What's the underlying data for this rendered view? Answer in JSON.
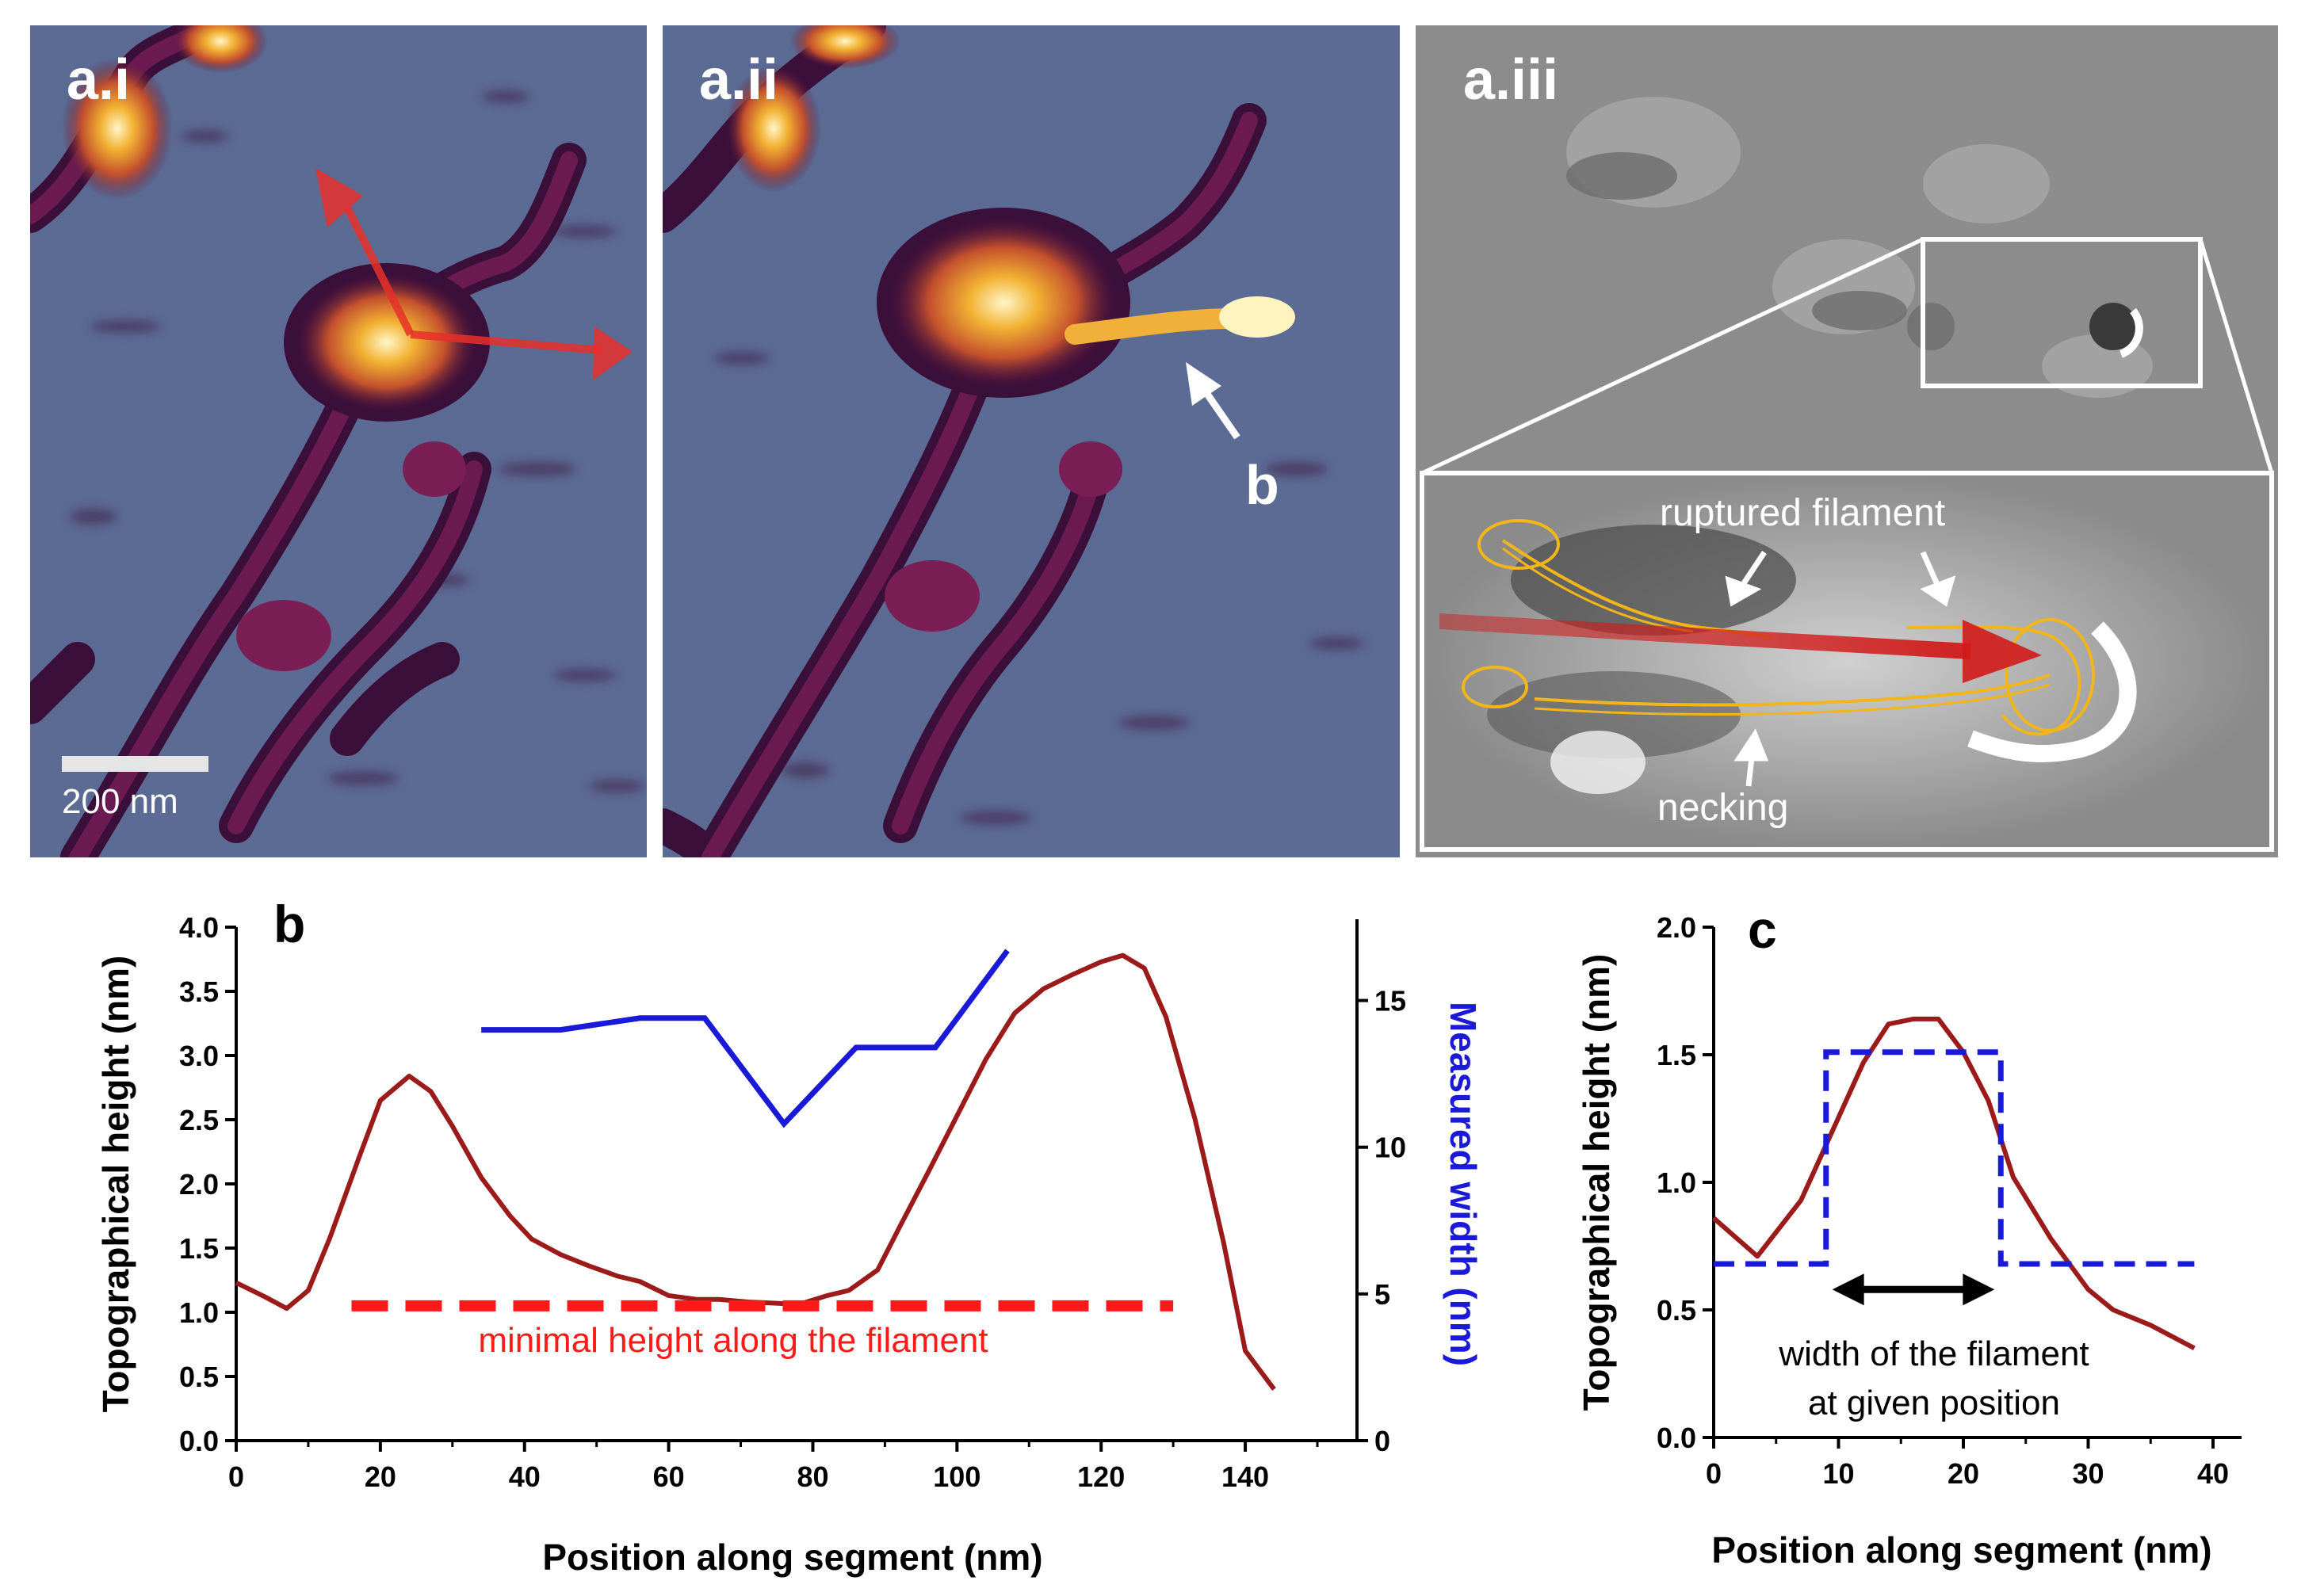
{
  "panels": {
    "ai": {
      "label": "a.i",
      "scalebar": "200 nm"
    },
    "aii": {
      "label": "a.ii",
      "pointer": "b"
    },
    "aiii": {
      "label": "a.iii",
      "ruptured": "ruptured filament",
      "necking": "necking"
    }
  },
  "colors": {
    "afm_bg": "#5c6b93",
    "dark_red": "#9b1b1b",
    "blue": "#1a1ad6",
    "red_dash": "#ff1a1a",
    "yellow_trace": "#f2b51a"
  },
  "chart_data": [
    {
      "id": "b",
      "type": "line",
      "letter": "b",
      "xlabel": "Position along segment (nm)",
      "ylabel": "Topographical height (nm)",
      "y2label": "Measured width (nm)",
      "xlim": [
        0,
        150
      ],
      "ylim": [
        0,
        4.0
      ],
      "y2lim": [
        0,
        17.5
      ],
      "xticks": [
        "0",
        "20",
        "40",
        "60",
        "80",
        "100",
        "120",
        "140"
      ],
      "yticks": [
        "0.0",
        "0.5",
        "1.0",
        "1.5",
        "2.0",
        "2.5",
        "3.0",
        "3.5",
        "4.0"
      ],
      "y2ticks": [
        "0",
        "5",
        "10",
        "15"
      ],
      "annotation": "minimal height along the filament",
      "series": [
        {
          "name": "height",
          "axis": "left",
          "x": [
            0,
            4,
            7,
            10,
            13,
            17,
            20,
            24,
            27,
            30,
            34,
            38,
            41,
            45,
            49,
            53,
            56,
            60,
            64,
            67,
            71,
            75,
            78,
            82,
            85,
            89,
            92,
            96,
            100,
            104,
            108,
            112,
            116,
            120,
            123,
            126,
            129,
            133,
            137,
            140,
            144
          ],
          "values": [
            1.23,
            1.12,
            1.03,
            1.17,
            1.58,
            2.2,
            2.65,
            2.84,
            2.72,
            2.45,
            2.05,
            1.75,
            1.57,
            1.45,
            1.36,
            1.28,
            1.24,
            1.13,
            1.1,
            1.1,
            1.08,
            1.07,
            1.06,
            1.13,
            1.17,
            1.33,
            1.66,
            2.09,
            2.53,
            2.97,
            3.33,
            3.52,
            3.63,
            3.73,
            3.78,
            3.68,
            3.3,
            2.51,
            1.54,
            0.7,
            0.4
          ]
        },
        {
          "name": "measured width",
          "axis": "right",
          "x": [
            34,
            45,
            56,
            65,
            76,
            86,
            97,
            107
          ],
          "values": [
            14,
            14,
            14.4,
            14.4,
            10.8,
            13.4,
            13.4,
            16.7
          ]
        },
        {
          "name": "minimal height",
          "axis": "left",
          "style": "dashed",
          "x": [
            16,
            130
          ],
          "values": [
            1.05,
            1.05
          ]
        }
      ]
    },
    {
      "id": "c",
      "type": "line",
      "letter": "c",
      "xlabel": "Position along segment (nm)",
      "ylabel": "Topographical height (nm)",
      "xlim": [
        0,
        42
      ],
      "ylim": [
        0,
        2.0
      ],
      "xticks": [
        "0",
        "10",
        "20",
        "30",
        "40"
      ],
      "yticks": [
        "0.0",
        "0.5",
        "1.0",
        "1.5",
        "2.0"
      ],
      "annotation": "width of the filament\nat given position",
      "annotation_lines": [
        "width of the filament",
        "at given position"
      ],
      "series": [
        {
          "name": "height",
          "x": [
            0,
            3.5,
            7,
            9.5,
            12,
            14,
            16,
            18,
            20,
            22,
            24,
            27,
            30,
            32,
            35,
            38.5
          ],
          "values": [
            0.86,
            0.71,
            0.93,
            1.2,
            1.47,
            1.62,
            1.64,
            1.64,
            1.51,
            1.32,
            1.02,
            0.78,
            0.58,
            0.5,
            0.44,
            0.35
          ]
        },
        {
          "name": "width box",
          "style": "dashed",
          "x": [
            0,
            9,
            9,
            23,
            23,
            38.5
          ],
          "values": [
            0.68,
            0.68,
            1.51,
            1.51,
            0.68,
            0.68
          ]
        },
        {
          "name": "width arrow",
          "style": "double-arrow",
          "x": [
            9.5,
            22.5
          ],
          "values": [
            0.58,
            0.58
          ]
        }
      ]
    }
  ]
}
